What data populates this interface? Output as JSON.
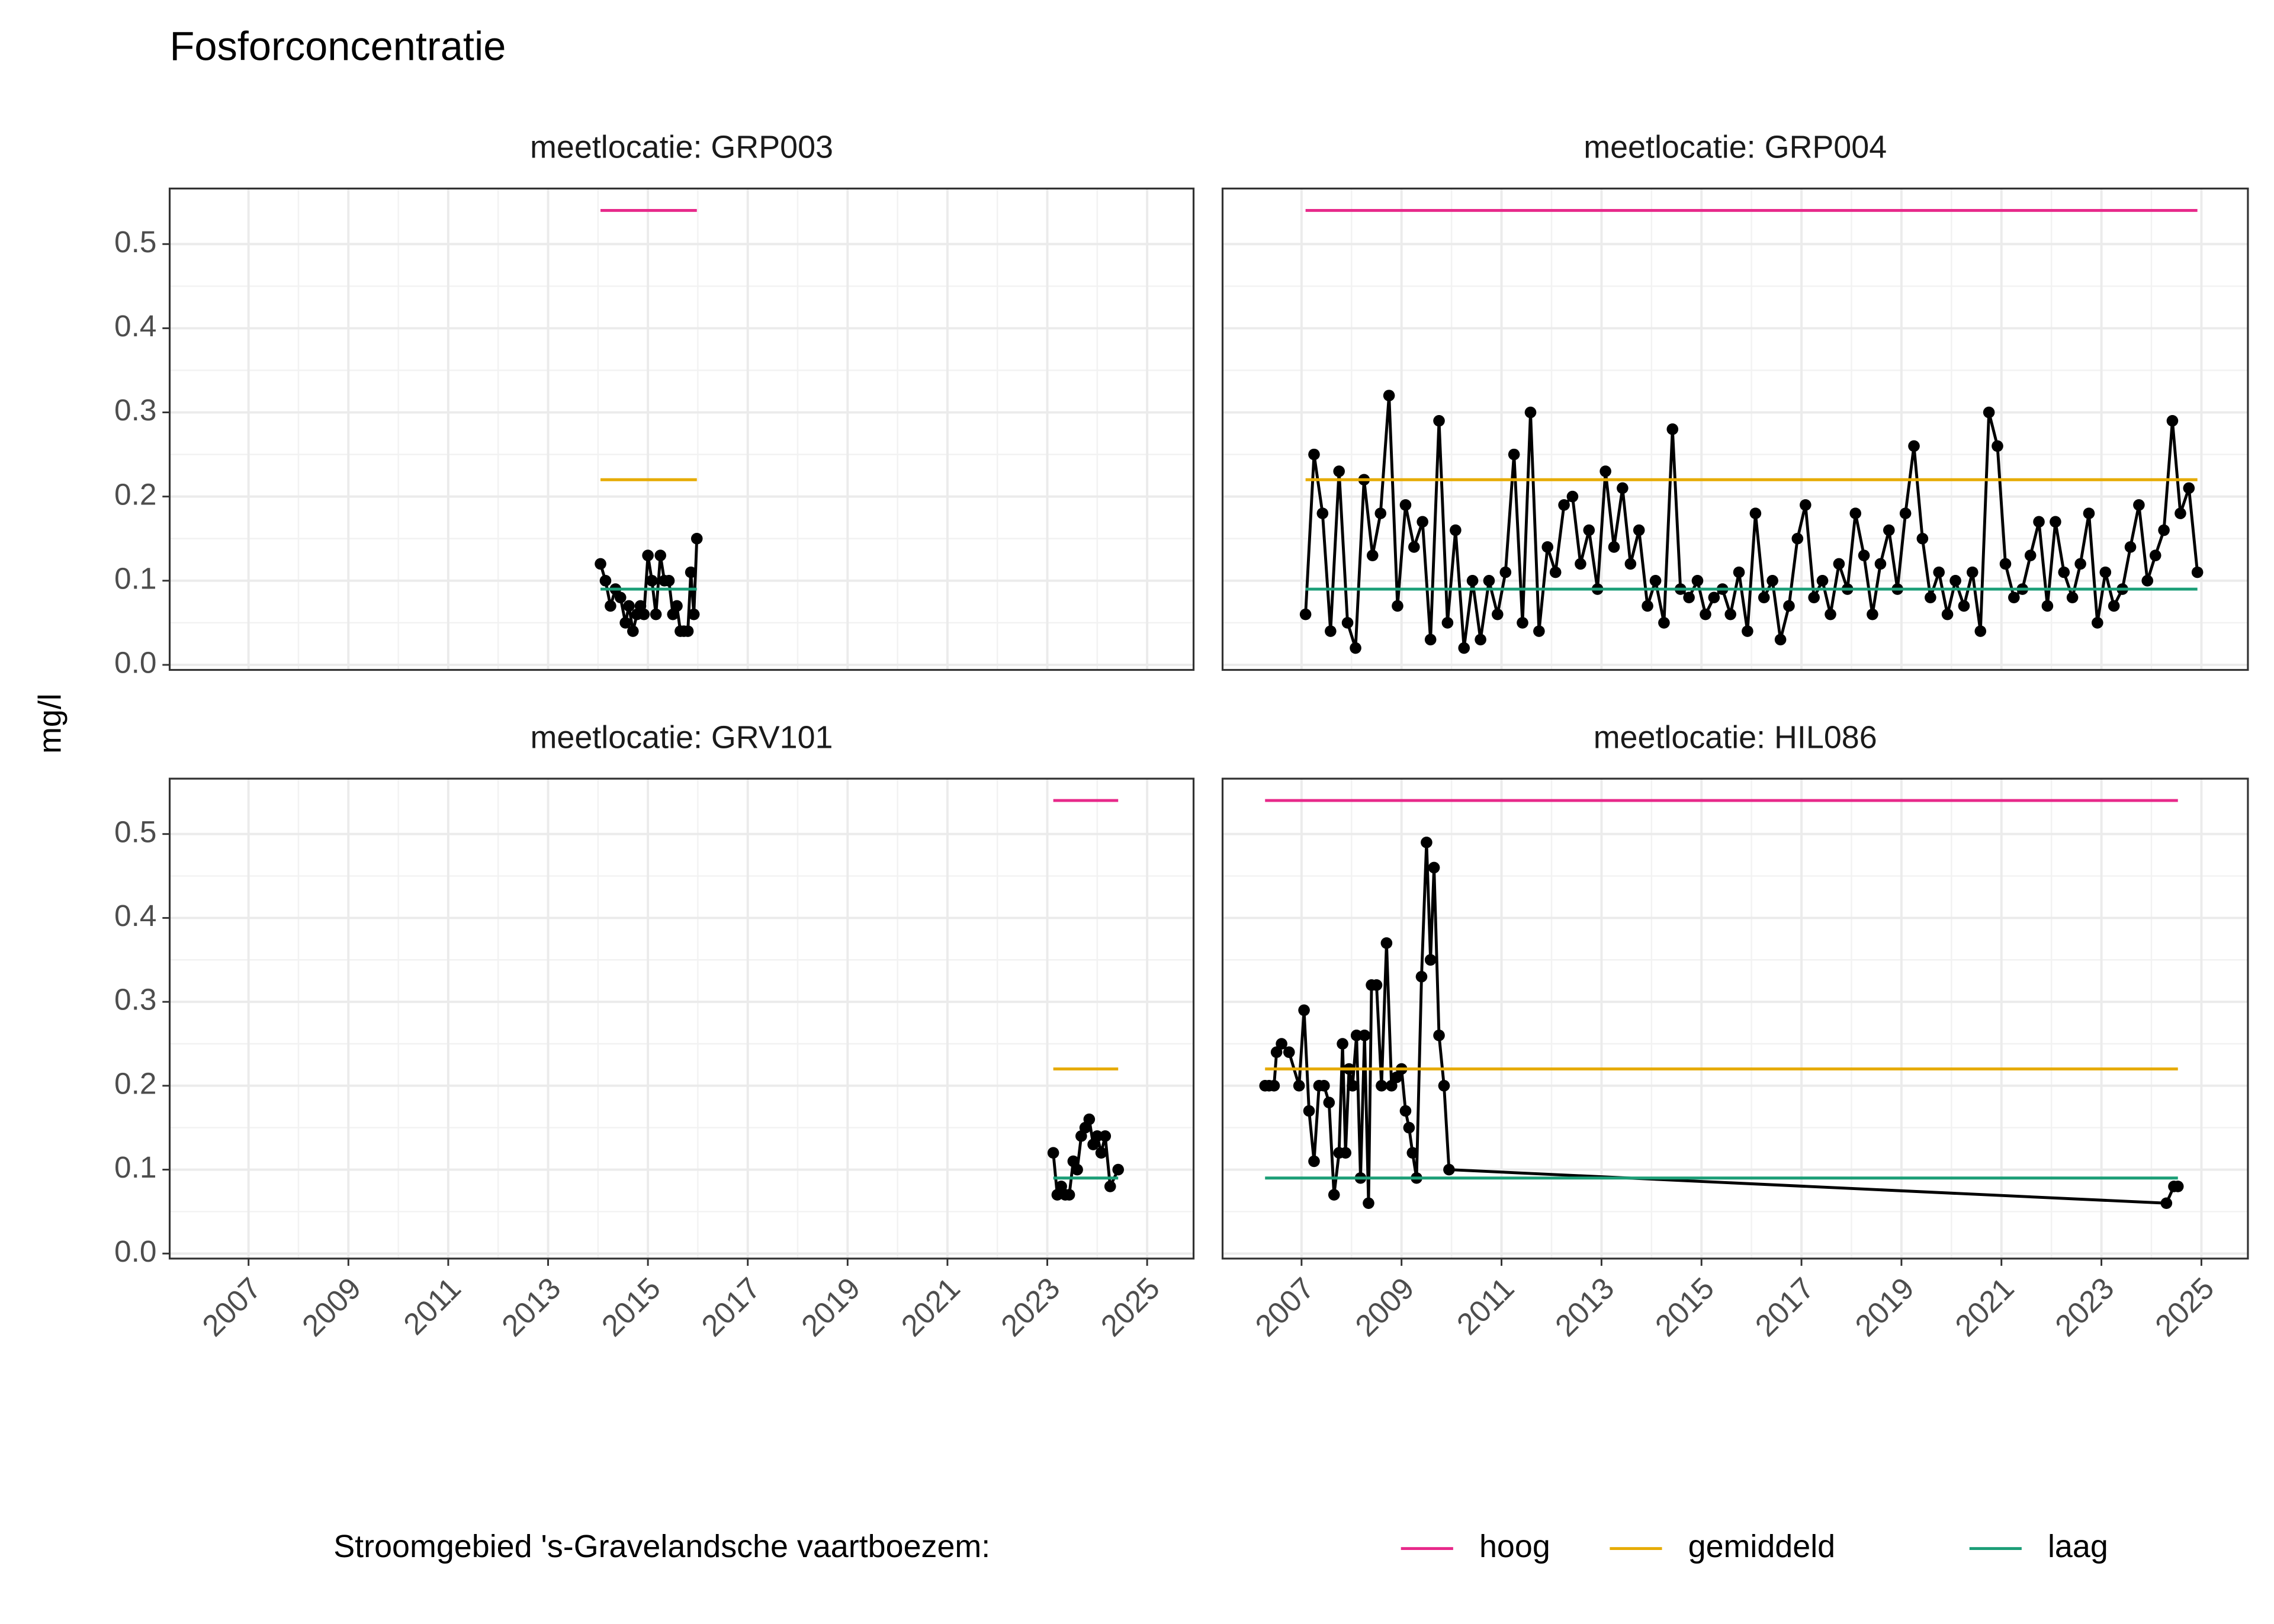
{
  "chart_data": {
    "type": "line",
    "title": "Fosforconcentratie",
    "y_label": "mg/l",
    "legend_title": "Stroomgebied 's-Gravelandsche vaartboezem:",
    "legend_position": "bottom",
    "grid": true,
    "xlim": [
      2005.42,
      2025.93
    ],
    "ylim": [
      -0.006,
      0.566
    ],
    "xticks": [
      2007,
      2009,
      2011,
      2013,
      2015,
      2017,
      2019,
      2021,
      2023,
      2025
    ],
    "yticks": [
      {
        "value": 0,
        "label": "0.0"
      },
      0.1,
      0.2,
      0.3,
      0.4,
      0.5
    ],
    "panels": [
      {
        "title": "meetlocatie: GRP003",
        "series": [
          {
            "color": "#000000",
            "x": [
              2014.05,
              2014.15,
              2014.25,
              2014.35,
              2014.45,
              2014.55,
              2014.62,
              2014.7,
              2014.78,
              2014.85,
              2014.92,
              2015.0,
              2015.08,
              2015.16,
              2015.25,
              2015.33,
              2015.42,
              2015.5,
              2015.58,
              2015.65,
              2015.72,
              2015.8,
              2015.86,
              2015.92,
              2015.98
            ],
            "values": [
              0.12,
              0.1,
              0.07,
              0.09,
              0.08,
              0.05,
              0.07,
              0.04,
              0.06,
              0.07,
              0.06,
              0.13,
              0.1,
              0.06,
              0.13,
              0.1,
              0.1,
              0.06,
              0.07,
              0.04,
              0.04,
              0.04,
              0.11,
              0.06,
              0.15
            ]
          },
          {
            "name": "hoog",
            "color": "#e7298a",
            "x": [
              2014.05,
              2015.98
            ],
            "values": [
              0.54,
              0.54
            ]
          },
          {
            "name": "gemiddeld",
            "color": "#e6ab02",
            "x": [
              2014.05,
              2015.98
            ],
            "values": [
              0.22,
              0.22
            ]
          },
          {
            "name": "laag",
            "color": "#1b9e77",
            "x": [
              2014.05,
              2015.98
            ],
            "values": [
              0.09,
              0.09
            ]
          }
        ]
      },
      {
        "title": "meetlocatie: GRP004",
        "series": [
          {
            "color": "#000000",
            "x": [
              2007.08,
              2007.25,
              2007.42,
              2007.58,
              2007.75,
              2007.92,
              2008.08,
              2008.25,
              2008.42,
              2008.58,
              2008.75,
              2008.92,
              2009.08,
              2009.25,
              2009.42,
              2009.58,
              2009.75,
              2009.92,
              2010.08,
              2010.25,
              2010.42,
              2010.58,
              2010.75,
              2010.92,
              2011.08,
              2011.25,
              2011.42,
              2011.58,
              2011.75,
              2011.92,
              2012.08,
              2012.25,
              2012.42,
              2012.58,
              2012.75,
              2012.92,
              2013.08,
              2013.25,
              2013.42,
              2013.58,
              2013.75,
              2013.92,
              2014.08,
              2014.25,
              2014.42,
              2014.58,
              2014.75,
              2014.92,
              2015.08,
              2015.25,
              2015.42,
              2015.58,
              2015.75,
              2015.92,
              2016.08,
              2016.25,
              2016.42,
              2016.58,
              2016.75,
              2016.92,
              2017.08,
              2017.25,
              2017.42,
              2017.58,
              2017.75,
              2017.92,
              2018.08,
              2018.25,
              2018.42,
              2018.58,
              2018.75,
              2018.92,
              2019.08,
              2019.25,
              2019.42,
              2019.58,
              2019.75,
              2019.92,
              2020.08,
              2020.25,
              2020.42,
              2020.58,
              2020.75,
              2020.92,
              2021.08,
              2021.25,
              2021.42,
              2021.58,
              2021.75,
              2021.92,
              2022.08,
              2022.25,
              2022.42,
              2022.58,
              2022.75,
              2022.92,
              2023.08,
              2023.25,
              2023.42,
              2023.58,
              2023.75,
              2023.92,
              2024.08,
              2024.25,
              2024.42,
              2024.58,
              2024.75,
              2024.92
            ],
            "values": [
              0.06,
              0.25,
              0.18,
              0.04,
              0.23,
              0.05,
              0.02,
              0.22,
              0.13,
              0.18,
              0.32,
              0.07,
              0.19,
              0.14,
              0.17,
              0.03,
              0.29,
              0.05,
              0.16,
              0.02,
              0.1,
              0.03,
              0.1,
              0.06,
              0.11,
              0.25,
              0.05,
              0.3,
              0.04,
              0.14,
              0.11,
              0.19,
              0.2,
              0.12,
              0.16,
              0.09,
              0.23,
              0.14,
              0.21,
              0.12,
              0.16,
              0.07,
              0.1,
              0.05,
              0.28,
              0.09,
              0.08,
              0.1,
              0.06,
              0.08,
              0.09,
              0.06,
              0.11,
              0.04,
              0.18,
              0.08,
              0.1,
              0.03,
              0.07,
              0.15,
              0.19,
              0.08,
              0.1,
              0.06,
              0.12,
              0.09,
              0.18,
              0.13,
              0.06,
              0.12,
              0.16,
              0.09,
              0.18,
              0.26,
              0.15,
              0.08,
              0.11,
              0.06,
              0.1,
              0.07,
              0.11,
              0.04,
              0.3,
              0.26,
              0.12,
              0.08,
              0.09,
              0.13,
              0.17,
              0.07,
              0.17,
              0.11,
              0.08,
              0.12,
              0.18,
              0.05,
              0.11,
              0.07,
              0.09,
              0.14,
              0.19,
              0.1,
              0.13,
              0.16,
              0.29,
              0.18,
              0.21,
              0.11
            ]
          },
          {
            "name": "hoog",
            "color": "#e7298a",
            "x": [
              2007.08,
              2024.92
            ],
            "values": [
              0.54,
              0.54
            ]
          },
          {
            "name": "gemiddeld",
            "color": "#e6ab02",
            "x": [
              2007.08,
              2024.92
            ],
            "values": [
              0.22,
              0.22
            ]
          },
          {
            "name": "laag",
            "color": "#1b9e77",
            "x": [
              2007.08,
              2024.92
            ],
            "values": [
              0.09,
              0.09
            ]
          }
        ]
      },
      {
        "title": "meetlocatie: GRV101",
        "series": [
          {
            "color": "#000000",
            "x": [
              2023.12,
              2023.2,
              2023.28,
              2023.36,
              2023.44,
              2023.52,
              2023.6,
              2023.68,
              2023.76,
              2023.84,
              2023.92,
              2024.0,
              2024.08,
              2024.16,
              2024.26,
              2024.42
            ],
            "values": [
              0.12,
              0.07,
              0.08,
              0.07,
              0.07,
              0.11,
              0.1,
              0.14,
              0.15,
              0.16,
              0.13,
              0.14,
              0.12,
              0.14,
              0.08,
              0.1
            ]
          },
          {
            "name": "hoog",
            "color": "#e7298a",
            "x": [
              2023.12,
              2024.42
            ],
            "values": [
              0.54,
              0.54
            ]
          },
          {
            "name": "gemiddeld",
            "color": "#e6ab02",
            "x": [
              2023.12,
              2024.42
            ],
            "values": [
              0.22,
              0.22
            ]
          },
          {
            "name": "laag",
            "color": "#1b9e77",
            "x": [
              2023.12,
              2024.42
            ],
            "values": [
              0.09,
              0.09
            ]
          }
        ]
      },
      {
        "title": "meetlocatie: HIL086",
        "series": [
          {
            "color": "#000000",
            "x": [
              2006.27,
              2006.35,
              2006.45,
              2006.5,
              2006.6,
              2006.75,
              2006.95,
              2007.05,
              2007.15,
              2007.25,
              2007.35,
              2007.45,
              2007.55,
              2007.65,
              2007.75,
              2007.82,
              2007.88,
              2007.95,
              2008.02,
              2008.1,
              2008.18,
              2008.26,
              2008.34,
              2008.4,
              2008.5,
              2008.6,
              2008.7,
              2008.8,
              2008.9,
              2009.0,
              2009.08,
              2009.15,
              2009.22,
              2009.3,
              2009.4,
              2009.5,
              2009.58,
              2009.65,
              2009.75,
              2009.85,
              2009.95,
              2024.3,
              2024.45,
              2024.53
            ],
            "values": [
              0.2,
              0.2,
              0.2,
              0.24,
              0.25,
              0.24,
              0.2,
              0.29,
              0.17,
              0.11,
              0.2,
              0.2,
              0.18,
              0.07,
              0.12,
              0.25,
              0.12,
              0.22,
              0.2,
              0.26,
              0.09,
              0.26,
              0.06,
              0.32,
              0.32,
              0.2,
              0.37,
              0.2,
              0.21,
              0.22,
              0.17,
              0.15,
              0.12,
              0.09,
              0.33,
              0.49,
              0.35,
              0.46,
              0.26,
              0.2,
              0.1,
              0.06,
              0.08,
              0.08
            ]
          },
          {
            "name": "hoog",
            "color": "#e7298a",
            "x": [
              2006.27,
              2024.53
            ],
            "values": [
              0.54,
              0.54
            ]
          },
          {
            "name": "gemiddeld",
            "color": "#e6ab02",
            "x": [
              2006.27,
              2024.53
            ],
            "values": [
              0.22,
              0.22
            ]
          },
          {
            "name": "laag",
            "color": "#1b9e77",
            "x": [
              2006.27,
              2024.53
            ],
            "values": [
              0.09,
              0.09
            ]
          }
        ]
      }
    ]
  }
}
